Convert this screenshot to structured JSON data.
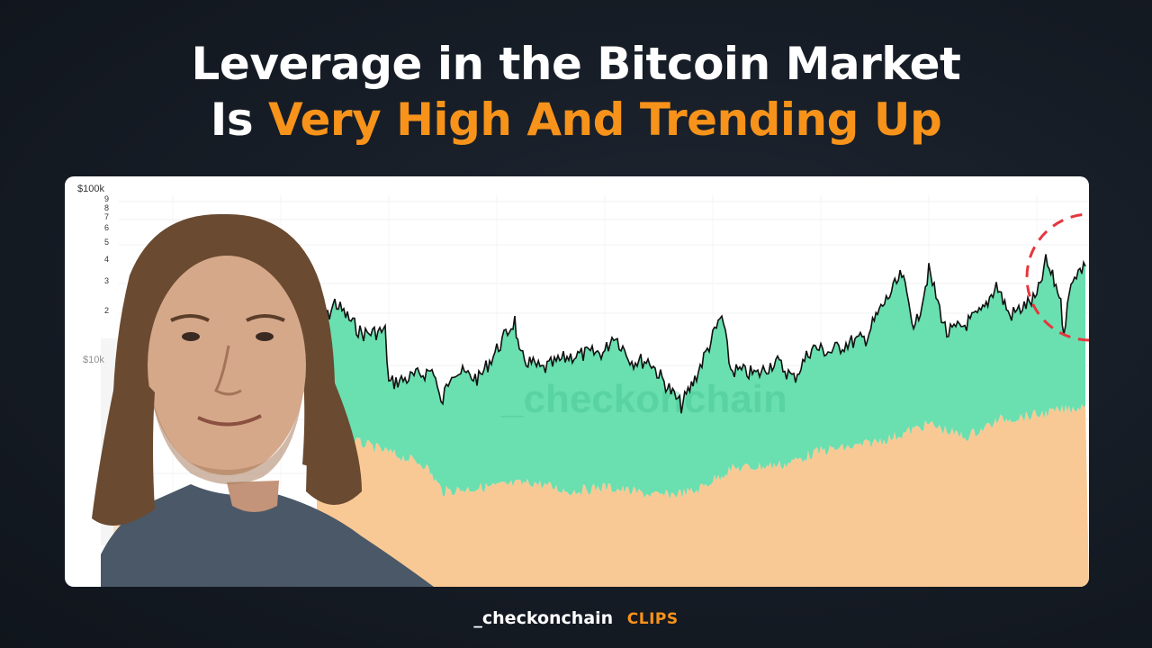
{
  "headline": {
    "line1": "Leverage in the Bitcoin Market",
    "line2_prefix": "Is",
    "line2_accent": "Very High And Trending Up"
  },
  "chart": {
    "watermark": "_checkonchain",
    "y_tick_labels": [
      "$100k",
      "9",
      "8",
      "7",
      "6",
      "5",
      "4",
      "3",
      "2"
    ],
    "inset_tick_label": "$10k",
    "colors": {
      "upper_fill": "#6adfb0",
      "lower_fill": "#f9c995",
      "price_line": "#111111",
      "highlight_circle": "#e5363d"
    }
  },
  "footer": {
    "brand": "_checkonchain",
    "tag": "CLIPS"
  }
}
